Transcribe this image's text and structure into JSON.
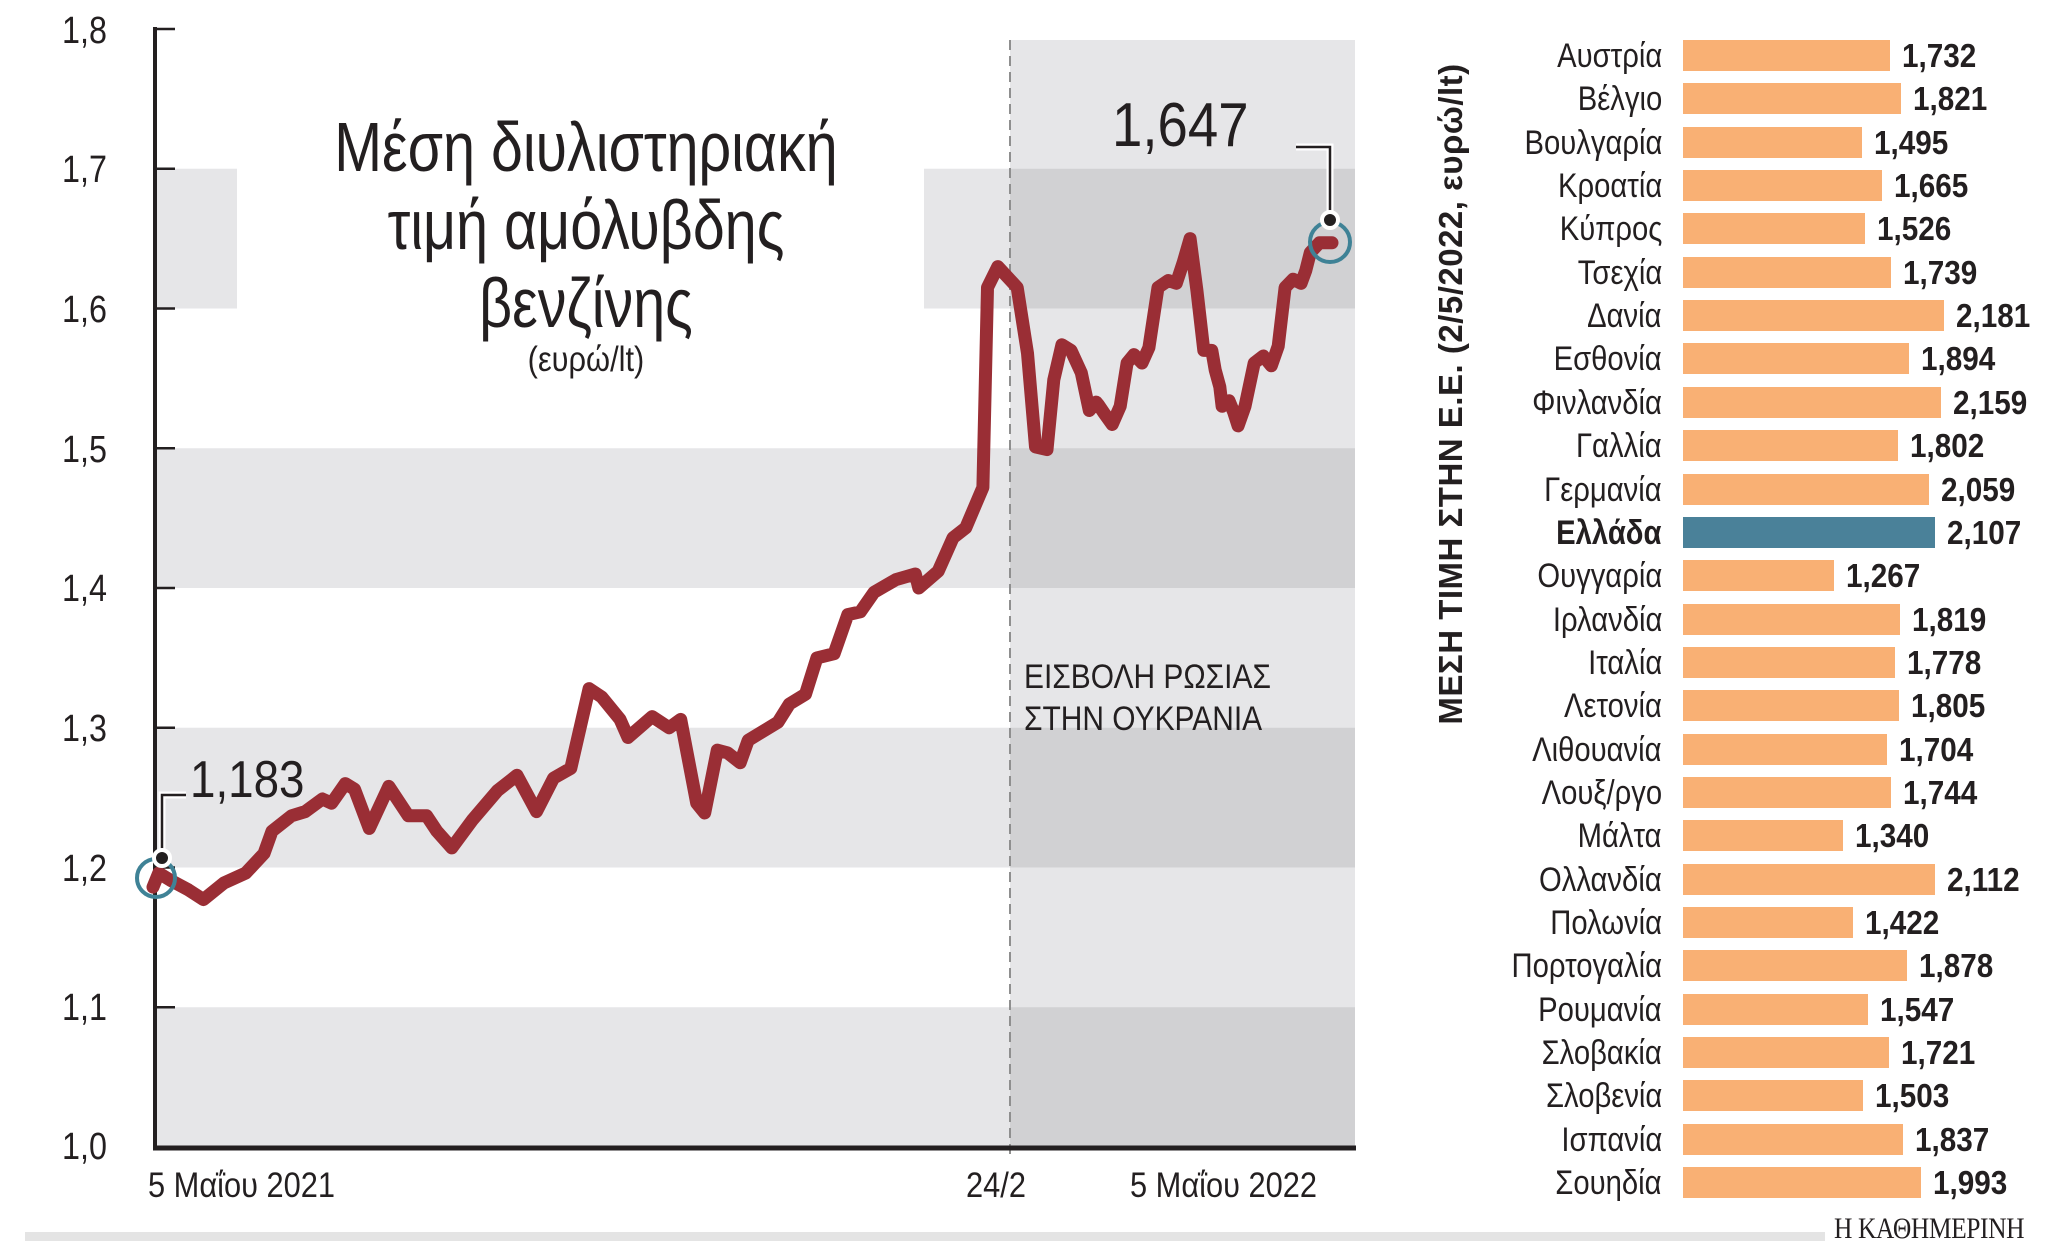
{
  "line_chart": {
    "title_lines": [
      "Μέση διυλιστηριακή",
      "τιμή αμόλυβδης",
      "βενζίνης"
    ],
    "subtitle": "(ευρώ/lt)",
    "y_ticks": [
      "1,8",
      "1,7",
      "1,6",
      "1,5",
      "1,4",
      "1,3",
      "1,2",
      "1,1",
      "1,0"
    ],
    "x_labels": {
      "start": "5 Μαΐου 2021",
      "event": "24/2",
      "end": "5 Μαΐου 2022"
    },
    "start_callout": "1,183",
    "end_callout": "1,647",
    "event_annotation": [
      "ΕΙΣΒΟΛΗ ΡΩΣΙΑΣ",
      "ΣΤΗΝ ΟΥΚΡΑΝΙΑ"
    ]
  },
  "bar_chart": {
    "axis_title": "ΜΕΣΗ ΤΙΜΗ ΣΤΗΝ Ε.Ε. (2/5/2022, ευρώ/lt)",
    "rows": [
      {
        "label": "Αυστρία",
        "value": "1,732"
      },
      {
        "label": "Βέλγιο",
        "value": "1,821"
      },
      {
        "label": "Βουλγαρία",
        "value": "1,495"
      },
      {
        "label": "Κροατία",
        "value": "1,665"
      },
      {
        "label": "Κύπρος",
        "value": "1,526"
      },
      {
        "label": "Τσεχία",
        "value": "1,739"
      },
      {
        "label": "Δανία",
        "value": "2,181"
      },
      {
        "label": "Εσθονία",
        "value": "1,894"
      },
      {
        "label": "Φινλανδία",
        "value": "2,159"
      },
      {
        "label": "Γαλλία",
        "value": "1,802"
      },
      {
        "label": "Γερμανία",
        "value": "2,059"
      },
      {
        "label": "Ελλάδα",
        "value": "2,107",
        "highlight": true
      },
      {
        "label": "Ουγγαρία",
        "value": "1,267"
      },
      {
        "label": "Ιρλανδία",
        "value": "1,819"
      },
      {
        "label": "Ιταλία",
        "value": "1,778"
      },
      {
        "label": "Λετονία",
        "value": "1,805"
      },
      {
        "label": "Λιθουανία",
        "value": "1,704"
      },
      {
        "label": "Λουξ/ργο",
        "value": "1,744"
      },
      {
        "label": "Μάλτα",
        "value": "1,340"
      },
      {
        "label": "Ολλανδία",
        "value": "2,112"
      },
      {
        "label": "Πολωνία",
        "value": "1,422"
      },
      {
        "label": "Πορτογαλία",
        "value": "1,878"
      },
      {
        "label": "Ρουμανία",
        "value": "1,547"
      },
      {
        "label": "Σλοβακία",
        "value": "1,721"
      },
      {
        "label": "Σλοβενία",
        "value": "1,503"
      },
      {
        "label": "Ισπανία",
        "value": "1,837"
      },
      {
        "label": "Σουηδία",
        "value": "1,993"
      }
    ]
  },
  "footer": {
    "logo": "Η ΚΑΘΗΜΕΡΙΝΗ"
  },
  "colors": {
    "line": "#9a2e35",
    "bar": "#f9b074",
    "bar_highlight": "#4a8199",
    "marker_ring": "#3f8296",
    "band_light": "#e6e6e8",
    "band_dark": "#d1d1d3"
  },
  "chart_data": [
    {
      "type": "line",
      "title": "Μέση διυλιστηριακή τιμή αμόλυβδης βενζίνης",
      "subtitle": "(ευρώ/lt)",
      "xlabel": "",
      "ylabel": "ευρώ/lt",
      "ylim": [
        1.0,
        1.8
      ],
      "y_ticks": [
        1.0,
        1.1,
        1.2,
        1.3,
        1.4,
        1.5,
        1.6,
        1.7,
        1.8
      ],
      "x_tick_labels": [
        "5 Μαΐου 2021",
        "24/2",
        "5 Μαΐου 2022"
      ],
      "grid": "alternating horizontal bands",
      "annotations": [
        {
          "text": "1,183",
          "at": "start",
          "value": 1.183
        },
        {
          "text": "1,647",
          "at": "end",
          "value": 1.647
        },
        {
          "text": "ΕΙΣΒΟΛΗ ΡΩΣΙΑΣ ΣΤΗΝ ΟΥΚΡΑΝΙΑ",
          "at": "24/2",
          "type": "vertical dashed line, shaded region after"
        }
      ],
      "series": [
        {
          "name": "Μέση διυλιστηριακή τιμή αμόλυβδης",
          "x_frac": [
            0.0,
            0.005,
            0.015,
            0.031,
            0.044,
            0.062,
            0.081,
            0.097,
            0.104,
            0.121,
            0.133,
            0.148,
            0.156,
            0.168,
            0.176,
            0.189,
            0.206,
            0.223,
            0.239,
            0.248,
            0.261,
            0.279,
            0.301,
            0.318,
            0.335,
            0.35,
            0.365,
            0.381,
            0.392,
            0.408,
            0.415,
            0.436,
            0.451,
            0.461,
            0.475,
            0.482,
            0.493,
            0.502,
            0.513,
            0.52,
            0.546,
            0.556,
            0.57,
            0.58,
            0.595,
            0.607,
            0.618,
            0.63,
            0.649,
            0.666,
            0.669,
            0.686,
            0.699,
            0.71,
            0.725,
            0.729,
            0.738,
            0.755,
            0.764,
            0.771,
            0.781,
            0.787,
            0.794,
            0.802,
            0.811,
            0.818,
            0.824,
            0.826,
            0.831,
            0.838,
            0.845,
            0.851,
            0.857,
            0.864,
            0.87,
            0.878,
            0.887,
            0.894,
            0.9,
            0.906,
            0.912,
            0.918,
            0.925,
            0.928,
            0.932,
            0.934,
            0.94,
            0.944,
            0.948,
            0.954,
            0.962,
            0.97,
            0.977,
            0.983,
            0.989,
            0.996,
            1.003,
            1.007,
            1.011,
            1.019,
            1.023,
            1.03
          ],
          "values": [
            1.186,
            1.196,
            1.191,
            1.184,
            1.177,
            1.189,
            1.196,
            1.21,
            1.226,
            1.237,
            1.24,
            1.249,
            1.246,
            1.26,
            1.256,
            1.228,
            1.258,
            1.237,
            1.237,
            1.226,
            1.214,
            1.234,
            1.255,
            1.266,
            1.24,
            1.264,
            1.271,
            1.328,
            1.322,
            1.306,
            1.293,
            1.308,
            1.3,
            1.306,
            1.246,
            1.239,
            1.284,
            1.282,
            1.275,
            1.291,
            1.304,
            1.317,
            1.324,
            1.35,
            1.353,
            1.381,
            1.383,
            1.397,
            1.406,
            1.41,
            1.4,
            1.412,
            1.436,
            1.443,
            1.472,
            1.615,
            1.63,
            1.615,
            1.568,
            1.501,
            1.499,
            1.549,
            1.574,
            1.57,
            1.554,
            1.527,
            1.533,
            1.531,
            1.525,
            1.517,
            1.53,
            1.561,
            1.567,
            1.561,
            1.572,
            1.615,
            1.62,
            1.618,
            1.633,
            1.65,
            1.613,
            1.57,
            1.57,
            1.556,
            1.544,
            1.53,
            1.534,
            1.526,
            1.516,
            1.53,
            1.561,
            1.566,
            1.559,
            1.573,
            1.615,
            1.621,
            1.618,
            1.627,
            1.64,
            1.647,
            1.647,
            1.647
          ]
        }
      ]
    },
    {
      "type": "bar",
      "orientation": "horizontal",
      "title": "ΜΕΣΗ ΤΙΜΗ ΣΤΗΝ Ε.Ε. (2/5/2022, ευρώ/lt)",
      "categories": [
        "Αυστρία",
        "Βέλγιο",
        "Βουλγαρία",
        "Κροατία",
        "Κύπρος",
        "Τσεχία",
        "Δανία",
        "Εσθονία",
        "Φινλανδία",
        "Γαλλία",
        "Γερμανία",
        "Ελλάδα",
        "Ουγγαρία",
        "Ιρλανδία",
        "Ιταλία",
        "Λετονία",
        "Λιθουανία",
        "Λουξ/ργο",
        "Μάλτα",
        "Ολλανδία",
        "Πολωνία",
        "Πορτογαλία",
        "Ρουμανία",
        "Σλοβακία",
        "Σλοβενία",
        "Ισπανία",
        "Σουηδία"
      ],
      "values": [
        1.732,
        1.821,
        1.495,
        1.665,
        1.526,
        1.739,
        2.181,
        1.894,
        2.159,
        1.802,
        2.059,
        2.107,
        1.267,
        1.819,
        1.778,
        1.805,
        1.704,
        1.744,
        1.34,
        2.112,
        1.422,
        1.878,
        1.547,
        1.721,
        1.503,
        1.837,
        1.993
      ],
      "highlight": "Ελλάδα",
      "xlabel": "",
      "ylabel": "",
      "grid": false
    }
  ]
}
